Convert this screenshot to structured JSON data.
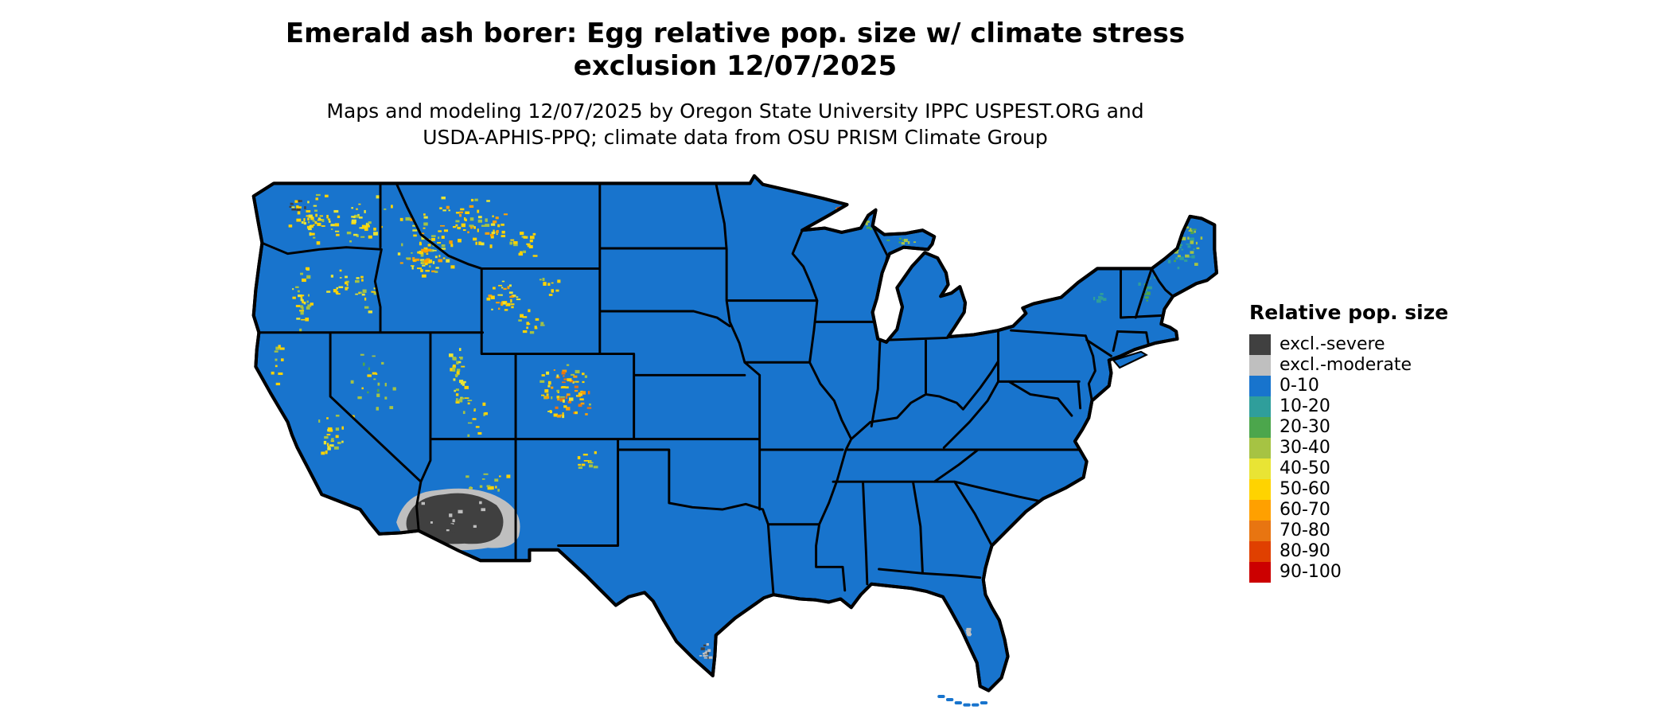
{
  "page": {
    "background": "#ffffff"
  },
  "title": {
    "line1": "Emerald ash borer: Egg relative pop. size w/ climate stress",
    "line2": "exclusion 12/07/2025"
  },
  "subtitle": {
    "line1": "Maps and modeling 12/07/2025 by Oregon State University IPPC USPEST.ORG and",
    "line2": "USDA-APHIS-PPQ; climate data from OSU PRISM Climate Group"
  },
  "map": {
    "region": "Continental United States",
    "border_color": "#000000",
    "ocean_color": "#ffffff",
    "base_class_label": "0-10"
  },
  "legend": {
    "title": "Relative pop. size",
    "items": [
      {
        "label": "excl.-severe",
        "color": "#404040"
      },
      {
        "label": "excl.-moderate",
        "color": "#bfbfbf"
      },
      {
        "label": "0-10",
        "color": "#1874cd"
      },
      {
        "label": "10-20",
        "color": "#2f9e9b"
      },
      {
        "label": "20-30",
        "color": "#4ca64c"
      },
      {
        "label": "30-40",
        "color": "#a6c343"
      },
      {
        "label": "40-50",
        "color": "#e9e434"
      },
      {
        "label": "50-60",
        "color": "#ffd300"
      },
      {
        "label": "60-70",
        "color": "#ffa000"
      },
      {
        "label": "70-80",
        "color": "#e87511"
      },
      {
        "label": "80-90",
        "color": "#e04000"
      },
      {
        "label": "90-100",
        "color": "#cc0000"
      }
    ]
  }
}
